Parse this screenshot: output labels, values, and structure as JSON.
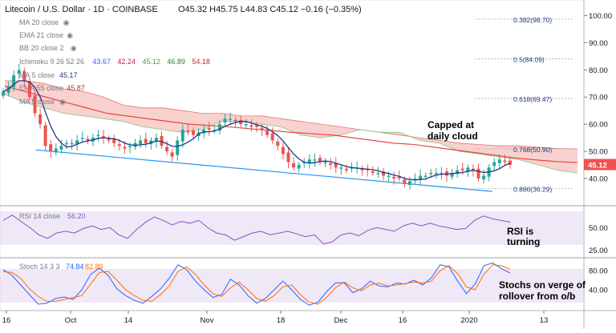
{
  "header": {
    "symbol": "Litecoin / U.S. Dollar · 1D · COINBASE",
    "ohlc": "O45.32  H45.75  L44.83  C45.12  −0.16 (−0.35%)"
  },
  "legend": [
    {
      "label": "MA 20 close",
      "value": "",
      "color": "#787b86"
    },
    {
      "label": "EMA 21 close",
      "value": "",
      "color": "#787b86"
    },
    {
      "label": "BB 20 close 2",
      "value": "",
      "color": "#787b86"
    },
    {
      "label": "Ichimoku 9 26 52 26",
      "values": [
        "43.67",
        "42.24",
        "45.12",
        "46.89",
        "54.18"
      ],
      "colors": [
        "#2962ff",
        "#c2185b",
        "#43a047",
        "#2e7d32",
        "#c62828"
      ]
    },
    {
      "label": "MA 5 close",
      "value": "45.17",
      "color": "#1e3a8a"
    },
    {
      "label": "EMA 55 close",
      "value": "45.87",
      "color": "#c62828"
    },
    {
      "label": "MA 5 close",
      "value": "",
      "color": "#787b86"
    }
  ],
  "colors": {
    "up": "#26a69a",
    "down": "#ef5350",
    "cloud": "#f8c9c6",
    "ema55": "#e53935",
    "ma5": "#1e3a8a",
    "trendline": "#2196f3",
    "rsi": "#7e57c2",
    "osc_band": "#e1d5f0",
    "stoch_k": "#2962ff",
    "stoch_d": "#ff6d00",
    "last_price_bg": "#ef5350"
  },
  "price_axis": {
    "ticks": [
      "100.00",
      "90.00",
      "80.00",
      "70.00",
      "60.00",
      "50.00",
      "40.00"
    ],
    "last_price": "45.12"
  },
  "rsi_axis": {
    "ticks": [
      "50.00",
      "25.00"
    ]
  },
  "stoch_axis": {
    "ticks": [
      "80.00",
      "40.00"
    ]
  },
  "x_axis": {
    "ticks": [
      "16",
      "Oct",
      "14",
      "Nov",
      "18",
      "Dec",
      "16",
      "2020",
      "13"
    ]
  },
  "indicators": {
    "rsi": {
      "label": "RSI 14 close",
      "value": "56.20"
    },
    "stoch": {
      "label": "Stoch 14 3 3",
      "k": "74.84",
      "d": "82.89"
    }
  },
  "annotations": {
    "cloud_note": [
      "Capped at",
      "daily cloud"
    ],
    "rsi_note": [
      "RSI is",
      "turning"
    ],
    "stoch_note": [
      "Stochs on verge of",
      "rollover from o/b"
    ]
  },
  "chart_data": {
    "type": "candlestick",
    "title": "Litecoin / U.S. Dollar · 1D · COINBASE",
    "ylim": [
      32,
      104
    ],
    "x_ticks": [
      "16",
      "Oct",
      "14",
      "Nov",
      "18",
      "Dec",
      "16",
      "2020",
      "13"
    ],
    "fib_levels": [
      {
        "label": "0.382(98.70)",
        "value": 98.7
      },
      {
        "label": "0.5(84.09)",
        "value": 84.09
      },
      {
        "label": "0.618(69.47)",
        "value": 69.47
      },
      {
        "label": "0.768(50.90)",
        "value": 50.9
      },
      {
        "label": "0.886(36.29)",
        "value": 36.29
      }
    ],
    "close_points": [
      72,
      74,
      78,
      80,
      76,
      70,
      64,
      60,
      52,
      50,
      51,
      52,
      53,
      53,
      54,
      55,
      54,
      55,
      56,
      55,
      54,
      53,
      52,
      51,
      52,
      53,
      54,
      53,
      54,
      55,
      52,
      50,
      48,
      54,
      58,
      57,
      56,
      57,
      58,
      58,
      58,
      60,
      62,
      62,
      61,
      60,
      60,
      59,
      59,
      58,
      56,
      54,
      52,
      49,
      46,
      44,
      45,
      46,
      47,
      47,
      46,
      46,
      45,
      44,
      44,
      43,
      44,
      44,
      43,
      43,
      42,
      42,
      41,
      41,
      40,
      40,
      38,
      39,
      40,
      41,
      41,
      42,
      42,
      42,
      41,
      42,
      43,
      43,
      44,
      43,
      40,
      41,
      44,
      46,
      47,
      46,
      45
    ],
    "ema55": [
      74,
      72,
      70,
      68,
      66,
      64,
      63,
      62,
      61,
      60,
      59.5,
      59,
      58.3,
      57.7,
      57,
      56.5,
      56,
      55,
      54,
      53,
      52.5,
      51.5,
      50.5,
      49.5,
      48.5,
      47.5,
      46.8,
      46.2,
      45.87
    ],
    "cloud_top": [
      76,
      76,
      75,
      73,
      72,
      70,
      67,
      66,
      66,
      65,
      64,
      64,
      63,
      63,
      62,
      61,
      60,
      59,
      58,
      57,
      56,
      55,
      54,
      53,
      52.5,
      52,
      52,
      51.5,
      51,
      50.9
    ],
    "cloud_bottom": [
      71,
      68,
      66,
      64,
      63,
      62,
      61,
      59,
      58,
      57,
      58,
      61,
      61,
      60,
      59,
      56,
      55,
      56,
      58,
      57,
      57,
      54,
      53,
      50,
      49,
      48,
      47,
      45,
      43,
      42
    ],
    "trendline": [
      {
        "x": 0.07,
        "y": 50.5
      },
      {
        "x": 0.965,
        "y": 35.2
      }
    ],
    "rsi": {
      "label": "RSI 14 close",
      "value": 56.2,
      "range": [
        20,
        70
      ],
      "values": [
        58,
        64,
        57,
        50,
        42,
        38,
        44,
        46,
        44,
        49,
        52,
        48,
        50,
        42,
        38,
        48,
        56,
        62,
        58,
        53,
        57,
        55,
        58,
        50,
        44,
        42,
        36,
        40,
        44,
        46,
        42,
        44,
        46,
        43,
        40,
        42,
        32,
        34,
        42,
        44,
        41,
        47,
        50,
        48,
        46,
        52,
        55,
        52,
        55,
        52,
        50,
        48,
        49,
        58,
        63,
        60,
        58,
        56.2
      ]
    },
    "stoch": {
      "label": "Stoch 14 3 3",
      "k_value": 74.84,
      "d_value": 82.89,
      "range": [
        0,
        100
      ],
      "k": [
        82,
        70,
        50,
        30,
        10,
        12,
        22,
        25,
        20,
        40,
        72,
        85,
        70,
        42,
        28,
        18,
        12,
        26,
        42,
        64,
        92,
        82,
        58,
        40,
        24,
        30,
        62,
        50,
        28,
        12,
        22,
        40,
        58,
        40,
        20,
        8,
        14,
        36,
        54,
        55,
        34,
        42,
        58,
        48,
        46,
        54,
        52,
        60,
        50,
        65,
        92,
        88,
        58,
        32,
        52,
        90,
        96,
        84,
        74.84
      ],
      "d": [
        78,
        76,
        64,
        42,
        26,
        16,
        16,
        20,
        24,
        28,
        52,
        76,
        78,
        60,
        40,
        28,
        18,
        16,
        30,
        48,
        78,
        88,
        72,
        50,
        32,
        26,
        44,
        56,
        40,
        22,
        16,
        28,
        46,
        50,
        30,
        14,
        10,
        24,
        44,
        56,
        44,
        38,
        50,
        54,
        48,
        50,
        53,
        56,
        54,
        58,
        80,
        90,
        74,
        46,
        40,
        72,
        92,
        90,
        82.89
      ]
    }
  }
}
